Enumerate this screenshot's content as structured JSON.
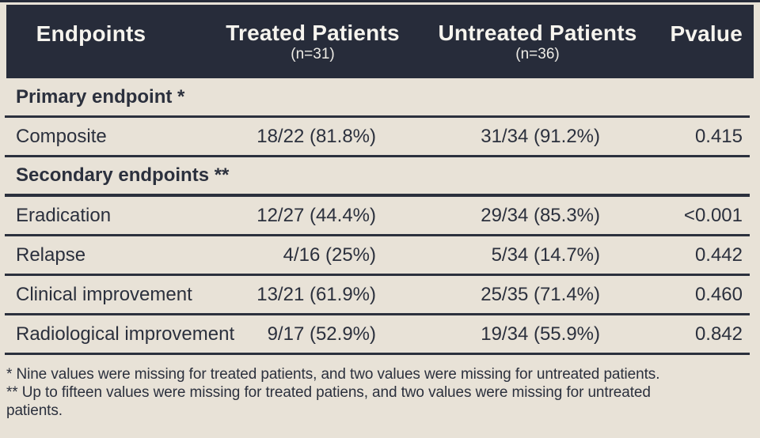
{
  "colors": {
    "background": "#e8e2d7",
    "header_bg": "#272c3a",
    "text": "#2b303d",
    "header_text": "#f6f4ee"
  },
  "table": {
    "header": {
      "endpoints": "Endpoints",
      "treated": "Treated Patients",
      "treated_sub": "(n=31)",
      "untreated": "Untreated Patients",
      "untreated_sub": "(n=36)",
      "pvalue": "Pvalue"
    },
    "rows": [
      {
        "type": "section",
        "label": "Primary endpoint *"
      },
      {
        "type": "data",
        "endpoint": "Composite",
        "treated": "18/22 (81.8%)",
        "untreated": "31/34 (91.2%)",
        "pvalue": "0.415"
      },
      {
        "type": "section",
        "label": "Secondary endpoints **"
      },
      {
        "type": "data",
        "endpoint": "Eradication",
        "treated": "12/27 (44.4%)",
        "untreated": "29/34 (85.3%)",
        "pvalue": "<0.001"
      },
      {
        "type": "data",
        "endpoint": "Relapse",
        "treated": "4/16 (25%)",
        "untreated": "5/34 (14.7%)",
        "pvalue": "0.442"
      },
      {
        "type": "data",
        "endpoint": "Clinical improvement",
        "treated": "13/21 (61.9%)",
        "untreated": "25/35 (71.4%)",
        "pvalue": "0.460"
      },
      {
        "type": "data",
        "endpoint": "Radiological improvement",
        "treated": "9/17 (52.9%)",
        "untreated": "19/34 (55.9%)",
        "pvalue": "0.842"
      }
    ],
    "footnotes": {
      "line1": "* Nine values were missing for treated patients, and two values were missing for untreated patients.",
      "line2": "** Up to fifteen values were missing for treated patiens, and two values were missing for untreated",
      "line3": "patients."
    }
  },
  "chart_data": {
    "type": "table",
    "columns": [
      "Endpoints",
      "Treated Patients (n=31)",
      "Untreated Patients (n=36)",
      "Pvalue"
    ],
    "rows": [
      {
        "section": "Primary endpoint *",
        "endpoint": null,
        "treated": null,
        "untreated": null,
        "pvalue": null
      },
      {
        "section": null,
        "endpoint": "Composite",
        "treated": "18/22 (81.8%)",
        "untreated": "31/34 (91.2%)",
        "pvalue": "0.415"
      },
      {
        "section": "Secondary endpoints **",
        "endpoint": null,
        "treated": null,
        "untreated": null,
        "pvalue": null
      },
      {
        "section": null,
        "endpoint": "Eradication",
        "treated": "12/27 (44.4%)",
        "untreated": "29/34 (85.3%)",
        "pvalue": "<0.001"
      },
      {
        "section": null,
        "endpoint": "Relapse",
        "treated": "4/16 (25%)",
        "untreated": "5/34 (14.7%)",
        "pvalue": "0.442"
      },
      {
        "section": null,
        "endpoint": "Clinical improvement",
        "treated": "13/21 (61.9%)",
        "untreated": "25/35 (71.4%)",
        "pvalue": "0.460"
      },
      {
        "section": null,
        "endpoint": "Radiological improvement",
        "treated": "9/17 (52.9%)",
        "untreated": "19/34 (55.9%)",
        "pvalue": "0.842"
      }
    ],
    "footnotes": [
      "* Nine values were missing for treated patients, and two values were missing for untreated patients.",
      "** Up to fifteen values were missing for treated patiens, and two values were missing for untreated patients."
    ]
  }
}
